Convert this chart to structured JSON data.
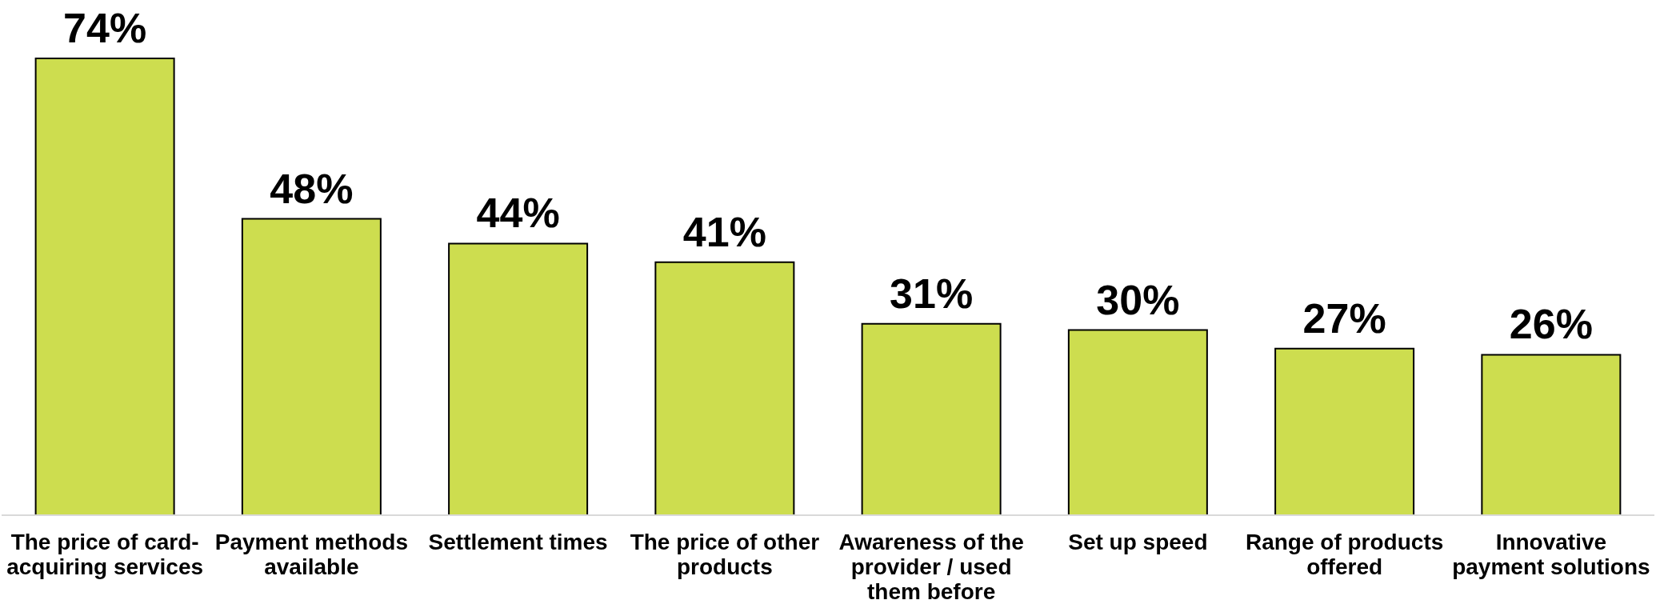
{
  "chart_data": {
    "type": "bar",
    "categories": [
      "The price of card-acquiring services",
      "Payment methods available",
      "Settlement times",
      "The price of other products",
      "Awareness of the provider / used them before",
      "Set up speed",
      "Range of products offered",
      "Innovative payment solutions"
    ],
    "values": [
      74,
      48,
      44,
      41,
      31,
      30,
      27,
      26
    ],
    "color": "#cddd4f",
    "value_labels": [
      "74%",
      "48%",
      "44%",
      "41%",
      "31%",
      "30%",
      "27%",
      "26%"
    ]
  }
}
